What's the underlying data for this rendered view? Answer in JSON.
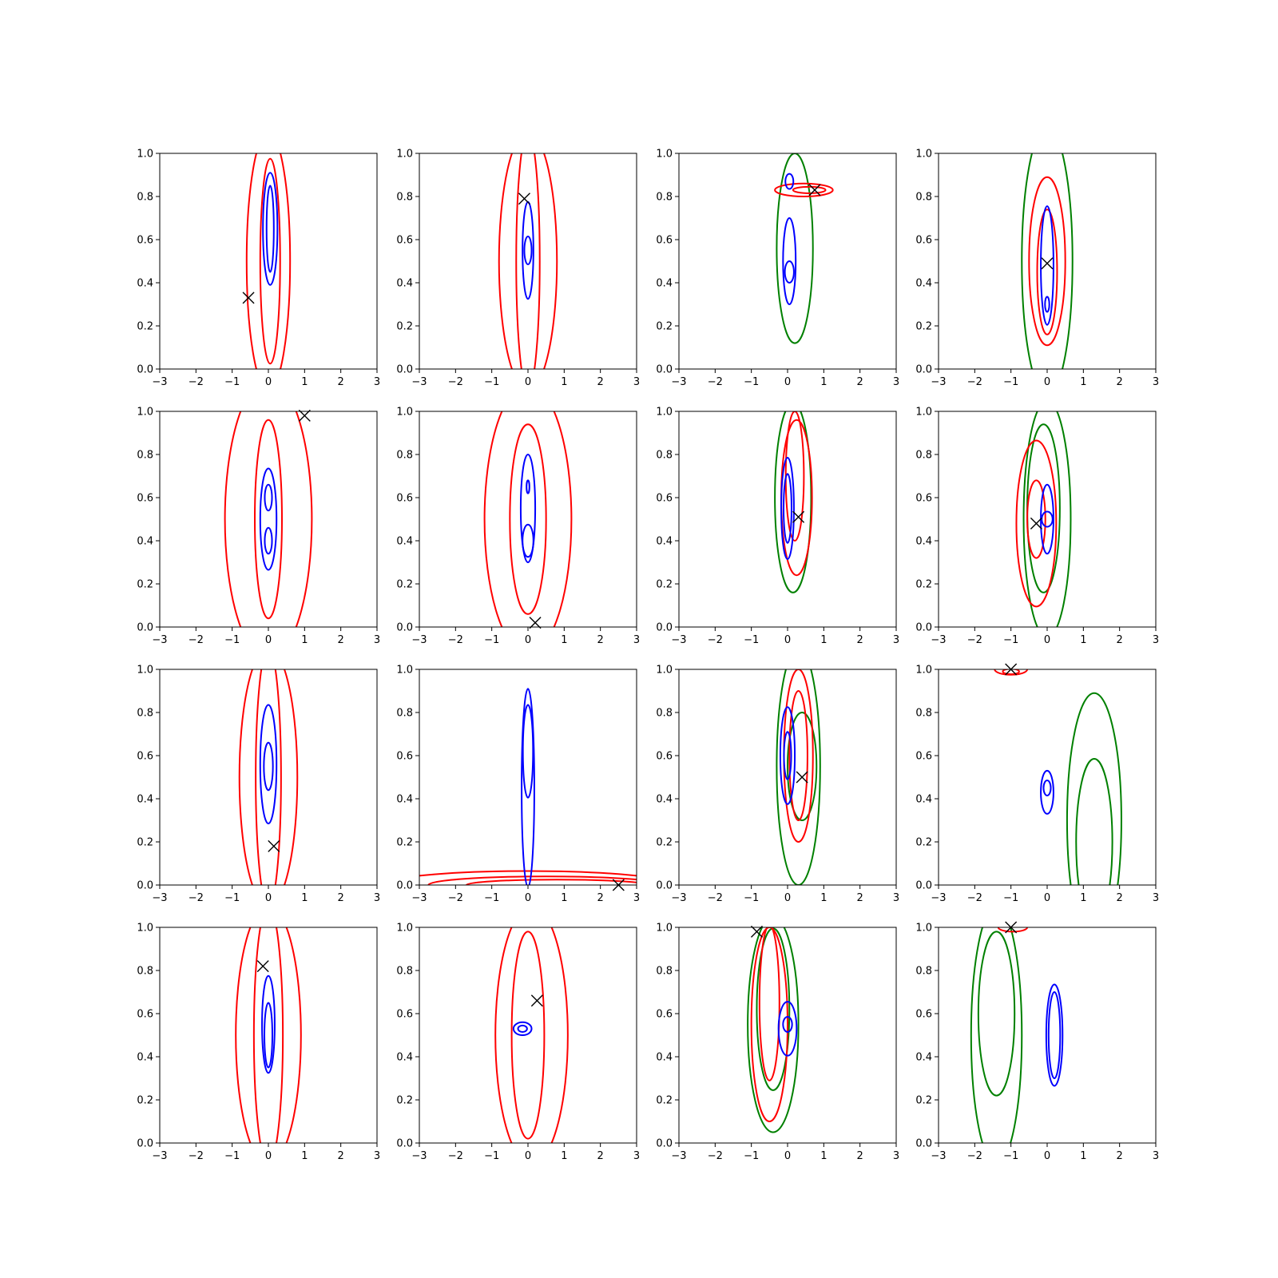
{
  "figure": {
    "rows": 4,
    "cols": 4
  },
  "colors": {
    "red": "#ff0000",
    "blue": "#0000ff",
    "green": "#008000",
    "marker": "#000000",
    "axes": "#000000"
  },
  "chart_data": [
    {
      "type": "contour",
      "xlim": [
        -3,
        3
      ],
      "ylim": [
        0,
        1
      ],
      "xticks": [
        "−3",
        "−2",
        "−1",
        "0",
        "1",
        "2",
        "3"
      ],
      "yticks": [
        "0.0",
        "0.2",
        "0.4",
        "0.6",
        "0.8",
        "1.0"
      ],
      "marker": [
        -0.55,
        0.33
      ],
      "contours": [
        {
          "color": "red",
          "cx": 0.0,
          "cy": 0.5,
          "w": 1.2,
          "h": 1.2
        },
        {
          "color": "red",
          "cx": 0.05,
          "cy": 0.5,
          "w": 0.55,
          "h": 0.95
        },
        {
          "color": "blue",
          "cx": 0.05,
          "cy": 0.65,
          "w": 0.4,
          "h": 0.52
        },
        {
          "color": "blue",
          "cx": 0.05,
          "cy": 0.65,
          "w": 0.2,
          "h": 0.4
        }
      ]
    },
    {
      "type": "contour",
      "xlim": [
        -3,
        3
      ],
      "ylim": [
        0,
        1
      ],
      "xticks": [
        "−3",
        "−2",
        "−1",
        "0",
        "1",
        "2",
        "3"
      ],
      "yticks": [
        "0.0",
        "0.2",
        "0.4",
        "0.6",
        "0.8",
        "1.0"
      ],
      "marker": [
        -0.1,
        0.79
      ],
      "contours": [
        {
          "color": "red",
          "cx": 0.0,
          "cy": 0.5,
          "w": 1.6,
          "h": 1.2
        },
        {
          "color": "red",
          "cx": 0.0,
          "cy": 0.5,
          "w": 0.65,
          "h": 1.2
        },
        {
          "color": "blue",
          "cx": 0.0,
          "cy": 0.55,
          "w": 0.3,
          "h": 0.45
        },
        {
          "color": "blue",
          "cx": 0.0,
          "cy": 0.55,
          "w": 0.2,
          "h": 0.13
        }
      ]
    },
    {
      "type": "contour",
      "xlim": [
        -3,
        3
      ],
      "ylim": [
        0,
        1
      ],
      "xticks": [
        "−3",
        "−2",
        "−1",
        "0",
        "1",
        "2",
        "3"
      ],
      "yticks": [
        "0.0",
        "0.2",
        "0.4",
        "0.6",
        "0.8",
        "1.0"
      ],
      "marker": [
        0.75,
        0.83
      ],
      "contours": [
        {
          "color": "green",
          "cx": 0.2,
          "cy": 0.56,
          "w": 1.0,
          "h": 0.88
        },
        {
          "color": "red",
          "cx": 0.45,
          "cy": 0.83,
          "w": 1.6,
          "h": 0.06
        },
        {
          "color": "red",
          "cx": 0.6,
          "cy": 0.83,
          "w": 0.9,
          "h": 0.03
        },
        {
          "color": "blue",
          "cx": 0.05,
          "cy": 0.5,
          "w": 0.35,
          "h": 0.4
        },
        {
          "color": "blue",
          "cx": 0.05,
          "cy": 0.45,
          "w": 0.25,
          "h": 0.1
        },
        {
          "color": "blue",
          "cx": 0.05,
          "cy": 0.87,
          "w": 0.22,
          "h": 0.07
        }
      ]
    },
    {
      "type": "contour",
      "xlim": [
        -3,
        3
      ],
      "ylim": [
        0,
        1
      ],
      "xticks": [
        "−3",
        "−2",
        "−1",
        "0",
        "1",
        "2",
        "3"
      ],
      "yticks": [
        "0.0",
        "0.2",
        "0.4",
        "0.6",
        "0.8",
        "1.0"
      ],
      "marker": [
        0.0,
        0.49
      ],
      "contours": [
        {
          "color": "green",
          "cx": 0.0,
          "cy": 0.5,
          "w": 1.4,
          "h": 1.25
        },
        {
          "color": "red",
          "cx": 0.0,
          "cy": 0.5,
          "w": 1.0,
          "h": 0.78
        },
        {
          "color": "red",
          "cx": 0.0,
          "cy": 0.45,
          "w": 0.55,
          "h": 0.58
        },
        {
          "color": "blue",
          "cx": 0.0,
          "cy": 0.48,
          "w": 0.35,
          "h": 0.55
        },
        {
          "color": "blue",
          "cx": 0.0,
          "cy": 0.3,
          "w": 0.12,
          "h": 0.07
        }
      ]
    },
    {
      "type": "contour",
      "xlim": [
        -3,
        3
      ],
      "ylim": [
        0,
        1
      ],
      "xticks": [
        "−3",
        "−2",
        "−1",
        "0",
        "1",
        "2",
        "3"
      ],
      "yticks": [
        "0.0",
        "0.2",
        "0.4",
        "0.6",
        "0.8",
        "1.0"
      ],
      "marker": [
        1.0,
        0.98
      ],
      "contours": [
        {
          "color": "red",
          "cx": 0.0,
          "cy": 0.5,
          "w": 2.4,
          "h": 1.3
        },
        {
          "color": "red",
          "cx": 0.0,
          "cy": 0.5,
          "w": 0.75,
          "h": 0.92
        },
        {
          "color": "blue",
          "cx": 0.0,
          "cy": 0.5,
          "w": 0.45,
          "h": 0.47
        },
        {
          "color": "blue",
          "cx": 0.0,
          "cy": 0.6,
          "w": 0.2,
          "h": 0.12
        },
        {
          "color": "blue",
          "cx": 0.0,
          "cy": 0.4,
          "w": 0.2,
          "h": 0.12
        }
      ]
    },
    {
      "type": "contour",
      "xlim": [
        -3,
        3
      ],
      "ylim": [
        0,
        1
      ],
      "xticks": [
        "−3",
        "−2",
        "−1",
        "0",
        "1",
        "2",
        "3"
      ],
      "yticks": [
        "0.0",
        "0.2",
        "0.4",
        "0.6",
        "0.8",
        "1.0"
      ],
      "marker": [
        0.2,
        0.02
      ],
      "contours": [
        {
          "color": "red",
          "cx": 0.0,
          "cy": 0.5,
          "w": 2.4,
          "h": 1.25
        },
        {
          "color": "red",
          "cx": 0.0,
          "cy": 0.5,
          "w": 1.0,
          "h": 0.88
        },
        {
          "color": "blue",
          "cx": 0.0,
          "cy": 0.55,
          "w": 0.4,
          "h": 0.5
        },
        {
          "color": "blue",
          "cx": 0.0,
          "cy": 0.4,
          "w": 0.3,
          "h": 0.15
        },
        {
          "color": "blue",
          "cx": 0.0,
          "cy": 0.65,
          "w": 0.08,
          "h": 0.06
        }
      ]
    },
    {
      "type": "contour",
      "xlim": [
        -3,
        3
      ],
      "ylim": [
        0,
        1
      ],
      "xticks": [
        "−3",
        "−2",
        "−1",
        "0",
        "1",
        "2",
        "3"
      ],
      "yticks": [
        "0.0",
        "0.2",
        "0.4",
        "0.6",
        "0.8",
        "1.0"
      ],
      "marker": [
        0.3,
        0.51
      ],
      "contours": [
        {
          "color": "green",
          "cx": 0.15,
          "cy": 0.6,
          "w": 1.0,
          "h": 0.88
        },
        {
          "color": "red",
          "cx": 0.25,
          "cy": 0.6,
          "w": 0.85,
          "h": 0.72
        },
        {
          "color": "red",
          "cx": 0.2,
          "cy": 0.7,
          "w": 0.5,
          "h": 0.6
        },
        {
          "color": "blue",
          "cx": 0.0,
          "cy": 0.55,
          "w": 0.35,
          "h": 0.47
        },
        {
          "color": "blue",
          "cx": 0.0,
          "cy": 0.55,
          "w": 0.22,
          "h": 0.32
        }
      ]
    },
    {
      "type": "contour",
      "xlim": [
        -3,
        3
      ],
      "ylim": [
        0,
        1
      ],
      "xticks": [
        "−3",
        "−2",
        "−1",
        "0",
        "1",
        "2",
        "3"
      ],
      "yticks": [
        "0.0",
        "0.2",
        "0.4",
        "0.6",
        "0.8",
        "1.0"
      ],
      "marker": [
        -0.3,
        0.48
      ],
      "contours": [
        {
          "color": "green",
          "cx": 0.0,
          "cy": 0.5,
          "w": 1.3,
          "h": 1.1
        },
        {
          "color": "green",
          "cx": -0.1,
          "cy": 0.55,
          "w": 0.9,
          "h": 0.78
        },
        {
          "color": "red",
          "cx": -0.3,
          "cy": 0.48,
          "w": 1.1,
          "h": 0.77
        },
        {
          "color": "red",
          "cx": -0.3,
          "cy": 0.5,
          "w": 0.5,
          "h": 0.36
        },
        {
          "color": "blue",
          "cx": 0.0,
          "cy": 0.5,
          "w": 0.35,
          "h": 0.32
        },
        {
          "color": "blue",
          "cx": 0.0,
          "cy": 0.5,
          "w": 0.3,
          "h": 0.07
        }
      ]
    },
    {
      "type": "contour",
      "xlim": [
        -3,
        3
      ],
      "ylim": [
        0,
        1
      ],
      "xticks": [
        "−3",
        "−2",
        "−1",
        "0",
        "1",
        "2",
        "3"
      ],
      "yticks": [
        "0.0",
        "0.2",
        "0.4",
        "0.6",
        "0.8",
        "1.0"
      ],
      "marker": [
        0.15,
        0.18
      ],
      "contours": [
        {
          "color": "red",
          "cx": 0.0,
          "cy": 0.5,
          "w": 1.6,
          "h": 1.2
        },
        {
          "color": "red",
          "cx": 0.0,
          "cy": 0.5,
          "w": 0.7,
          "h": 1.2
        },
        {
          "color": "blue",
          "cx": 0.0,
          "cy": 0.56,
          "w": 0.45,
          "h": 0.55
        },
        {
          "color": "blue",
          "cx": 0.0,
          "cy": 0.55,
          "w": 0.25,
          "h": 0.22
        }
      ]
    },
    {
      "type": "contour",
      "xlim": [
        -3,
        3
      ],
      "ylim": [
        0,
        1
      ],
      "xticks": [
        "−3",
        "−2",
        "−1",
        "0",
        "1",
        "2",
        "3"
      ],
      "yticks": [
        "0.0",
        "0.2",
        "0.4",
        "0.6",
        "0.8",
        "1.0"
      ],
      "marker": [
        2.5,
        0.0
      ],
      "contours": [
        {
          "color": "red",
          "cx": 0.0,
          "cy": 0.0,
          "w": 8.0,
          "h": 0.13
        },
        {
          "color": "red",
          "cx": 0.5,
          "cy": 0.0,
          "w": 6.5,
          "h": 0.08
        },
        {
          "color": "red",
          "cx": 0.8,
          "cy": 0.0,
          "w": 5.0,
          "h": 0.05
        },
        {
          "color": "blue",
          "cx": 0.0,
          "cy": 0.45,
          "w": 0.35,
          "h": 0.92
        },
        {
          "color": "blue",
          "cx": 0.0,
          "cy": 0.62,
          "w": 0.28,
          "h": 0.43
        }
      ]
    },
    {
      "type": "contour",
      "xlim": [
        -3,
        3
      ],
      "ylim": [
        0,
        1
      ],
      "xticks": [
        "−3",
        "−2",
        "−1",
        "0",
        "1",
        "2",
        "3"
      ],
      "yticks": [
        "0.0",
        "0.2",
        "0.4",
        "0.6",
        "0.8",
        "1.0"
      ],
      "marker": [
        0.4,
        0.5
      ],
      "contours": [
        {
          "color": "green",
          "cx": 0.3,
          "cy": 0.55,
          "w": 1.2,
          "h": 1.1
        },
        {
          "color": "green",
          "cx": 0.4,
          "cy": 0.55,
          "w": 0.8,
          "h": 0.5
        },
        {
          "color": "red",
          "cx": 0.3,
          "cy": 0.6,
          "w": 0.8,
          "h": 0.8
        },
        {
          "color": "red",
          "cx": 0.3,
          "cy": 0.6,
          "w": 0.5,
          "h": 0.6
        },
        {
          "color": "blue",
          "cx": 0.0,
          "cy": 0.6,
          "w": 0.4,
          "h": 0.45
        },
        {
          "color": "blue",
          "cx": 0.0,
          "cy": 0.6,
          "w": 0.2,
          "h": 0.22
        }
      ]
    },
    {
      "type": "contour",
      "xlim": [
        -3,
        3
      ],
      "ylim": [
        0,
        1
      ],
      "xticks": [
        "−3",
        "−2",
        "−1",
        "0",
        "1",
        "2",
        "3"
      ],
      "yticks": [
        "0.0",
        "0.2",
        "0.4",
        "0.6",
        "0.8",
        "1.0"
      ],
      "marker": [
        -1.0,
        1.0
      ],
      "contours": [
        {
          "color": "green",
          "cx": 1.3,
          "cy": 0.3,
          "w": 1.5,
          "h": 1.18
        },
        {
          "color": "green",
          "cx": 1.3,
          "cy": 0.2,
          "w": 1.0,
          "h": 0.77
        },
        {
          "color": "red",
          "cx": -1.0,
          "cy": 1.0,
          "w": 0.9,
          "h": 0.05
        },
        {
          "color": "red",
          "cx": -1.0,
          "cy": 0.99,
          "w": 0.45,
          "h": 0.025
        },
        {
          "color": "blue",
          "cx": 0.0,
          "cy": 0.43,
          "w": 0.35,
          "h": 0.2
        },
        {
          "color": "blue",
          "cx": 0.0,
          "cy": 0.45,
          "w": 0.2,
          "h": 0.07
        }
      ]
    },
    {
      "type": "contour",
      "xlim": [
        -3,
        3
      ],
      "ylim": [
        0,
        1
      ],
      "xticks": [
        "−3",
        "−2",
        "−1",
        "0",
        "1",
        "2",
        "3"
      ],
      "yticks": [
        "0.0",
        "0.2",
        "0.4",
        "0.6",
        "0.8",
        "1.0"
      ],
      "marker": [
        -0.15,
        0.82
      ],
      "contours": [
        {
          "color": "red",
          "cx": 0.0,
          "cy": 0.5,
          "w": 1.8,
          "h": 1.2
        },
        {
          "color": "red",
          "cx": 0.0,
          "cy": 0.5,
          "w": 0.8,
          "h": 1.2
        },
        {
          "color": "blue",
          "cx": 0.0,
          "cy": 0.55,
          "w": 0.35,
          "h": 0.45
        },
        {
          "color": "blue",
          "cx": 0.0,
          "cy": 0.5,
          "w": 0.22,
          "h": 0.3
        }
      ]
    },
    {
      "type": "contour",
      "xlim": [
        -3,
        3
      ],
      "ylim": [
        0,
        1
      ],
      "xticks": [
        "−3",
        "−2",
        "−1",
        "0",
        "1",
        "2",
        "3"
      ],
      "yticks": [
        "0.0",
        "0.2",
        "0.4",
        "0.6",
        "0.8",
        "1.0"
      ],
      "marker": [
        0.25,
        0.66
      ],
      "contours": [
        {
          "color": "red",
          "cx": 0.1,
          "cy": 0.5,
          "w": 2.0,
          "h": 1.2
        },
        {
          "color": "red",
          "cx": 0.0,
          "cy": 0.5,
          "w": 0.9,
          "h": 0.96
        },
        {
          "color": "blue",
          "cx": -0.15,
          "cy": 0.53,
          "w": 0.5,
          "h": 0.06
        },
        {
          "color": "blue",
          "cx": -0.15,
          "cy": 0.53,
          "w": 0.25,
          "h": 0.03
        }
      ]
    },
    {
      "type": "contour",
      "xlim": [
        -3,
        3
      ],
      "ylim": [
        0,
        1
      ],
      "xticks": [
        "−3",
        "−2",
        "−1",
        "0",
        "1",
        "2",
        "3"
      ],
      "yticks": [
        "0.0",
        "0.2",
        "0.4",
        "0.6",
        "0.8",
        "1.0"
      ],
      "marker": [
        -0.85,
        0.98
      ],
      "contours": [
        {
          "color": "green",
          "cx": -0.4,
          "cy": 0.55,
          "w": 1.4,
          "h": 1.0
        },
        {
          "color": "green",
          "cx": -0.4,
          "cy": 0.62,
          "w": 0.9,
          "h": 0.75
        },
        {
          "color": "red",
          "cx": -0.5,
          "cy": 0.55,
          "w": 1.0,
          "h": 0.9
        },
        {
          "color": "red",
          "cx": -0.5,
          "cy": 0.65,
          "w": 0.55,
          "h": 0.72
        },
        {
          "color": "blue",
          "cx": 0.0,
          "cy": 0.53,
          "w": 0.5,
          "h": 0.25
        },
        {
          "color": "blue",
          "cx": 0.0,
          "cy": 0.55,
          "w": 0.25,
          "h": 0.07
        }
      ]
    },
    {
      "type": "contour",
      "xlim": [
        -3,
        3
      ],
      "ylim": [
        0,
        1
      ],
      "xticks": [
        "−3",
        "−2",
        "−1",
        "0",
        "1",
        "2",
        "3"
      ],
      "yticks": [
        "0.0",
        "0.2",
        "0.4",
        "0.6",
        "0.8",
        "1.0"
      ],
      "marker": [
        -1.0,
        1.0
      ],
      "contours": [
        {
          "color": "green",
          "cx": -1.4,
          "cy": 0.5,
          "w": 1.4,
          "h": 1.2
        },
        {
          "color": "green",
          "cx": -1.4,
          "cy": 0.6,
          "w": 1.0,
          "h": 0.76
        },
        {
          "color": "red",
          "cx": -0.95,
          "cy": 1.0,
          "w": 0.8,
          "h": 0.04
        },
        {
          "color": "blue",
          "cx": 0.2,
          "cy": 0.5,
          "w": 0.45,
          "h": 0.47
        },
        {
          "color": "blue",
          "cx": 0.2,
          "cy": 0.5,
          "w": 0.32,
          "h": 0.4
        }
      ]
    }
  ]
}
